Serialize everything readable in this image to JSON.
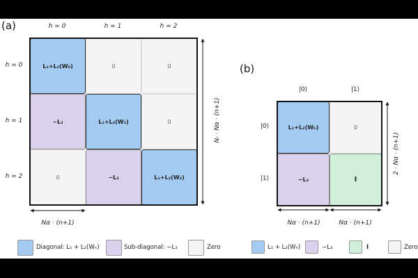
{
  "panel_a": {
    "label": "(a)",
    "columns": [
      "h = 0",
      "h = 1",
      "h = 2"
    ],
    "rows": [
      "h = 0",
      "h = 1",
      "h = 2"
    ],
    "cells": {
      "r0c0": "L₁+L₂(W₀)",
      "r0c1": "0",
      "r0c2": "0",
      "r1c0": "−L₃",
      "r1c1": "L₁+L₂(W₁)",
      "r1c2": "0",
      "r2c0": "0",
      "r2c1": "−L₃",
      "r2c2": "L₁+L₂(W₂)"
    },
    "bottom_dim": "Nα · (n+1)",
    "side_dim": "Nᵣ · Nα · (n+1)"
  },
  "panel_b": {
    "label": "(b)",
    "columns": [
      "|0⟩",
      "|1⟩"
    ],
    "rows": [
      "|0⟩",
      "|1⟩"
    ],
    "cells": {
      "r0c0": "L₁+L₂(Wₕ)",
      "r0c1": "0",
      "r1c0": "−L₃",
      "r1c1": "I"
    },
    "bottom_dim_left": "Nα · (n+1)",
    "bottom_dim_right": "Nα · (n+1)",
    "side_dim": "2 · Nα · (n+1)"
  },
  "legend_a": {
    "diagonal": "Diagonal: L₁ + L₂(Wₕ)",
    "subdiagonal": "Sub-diagonal: −L₃",
    "zero": "Zero"
  },
  "legend_b": {
    "blue": "L₁ + L₂(Wₕ)",
    "purple": "−L₃",
    "green": "I",
    "zero": "Zero"
  },
  "colors": {
    "blue": "#a4cbf2",
    "purple": "#dcd1ec",
    "green": "#d1efd9",
    "zero": "#f4f4f4"
  }
}
